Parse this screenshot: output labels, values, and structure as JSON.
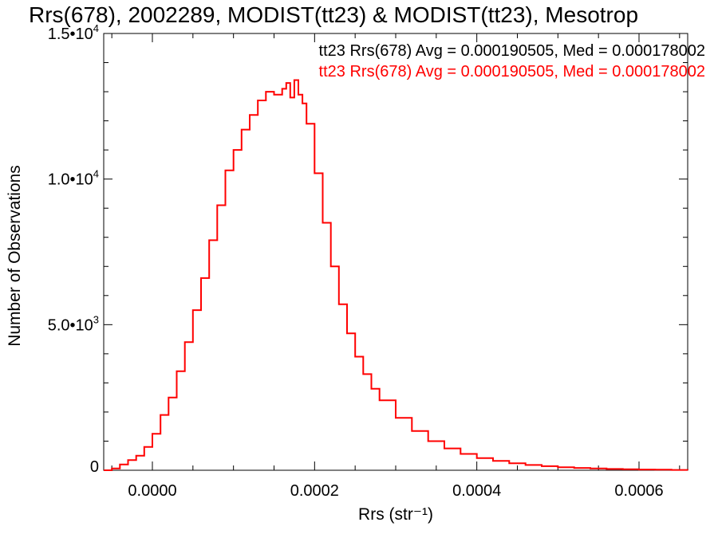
{
  "chart_data": {
    "type": "line",
    "step": true,
    "title": "Rrs(678), 2002289, MODIST(tt23) & MODIST(tt23), Mesotrop",
    "xlabel": "Rrs (str⁻¹)",
    "ylabel": "Number of Observations",
    "xlim": [
      -6e-05,
      0.00066
    ],
    "ylim": [
      0,
      15000
    ],
    "x_ticks": [
      {
        "value": 0.0,
        "label": "0.0000"
      },
      {
        "value": 0.0002,
        "label": "0.0002"
      },
      {
        "value": 0.0004,
        "label": "0.0004"
      },
      {
        "value": 0.0006,
        "label": "0.0006"
      }
    ],
    "y_ticks": [
      {
        "value": 0,
        "mant": "0",
        "exp": ""
      },
      {
        "value": 5000,
        "mant": "5.0•10",
        "exp": "3"
      },
      {
        "value": 10000,
        "mant": "1.0•10",
        "exp": "4"
      },
      {
        "value": 15000,
        "mant": "1.5•10",
        "exp": "4"
      }
    ],
    "annotations": [
      {
        "text": "tt23 Rrs(678) Avg = 0.000190505, Med = 0.000178002",
        "color": "#000000"
      },
      {
        "text": "tt23 Rrs(678) Avg = 0.000190505, Med = 0.000178002",
        "color": "#ff0000"
      }
    ],
    "series": [
      {
        "color": "#ff0000",
        "x": [
          -6e-05,
          -5e-05,
          -4e-05,
          -3e-05,
          -2e-05,
          -1e-05,
          0.0,
          1e-05,
          2e-05,
          3e-05,
          4e-05,
          5e-05,
          6e-05,
          7e-05,
          8e-05,
          9e-05,
          0.0001,
          0.00011,
          0.00012,
          0.00013,
          0.00014,
          0.00015,
          0.00016,
          0.000165,
          0.00017,
          0.000175,
          0.00018,
          0.000185,
          0.00019,
          0.0002,
          0.00021,
          0.00022,
          0.00023,
          0.00024,
          0.00025,
          0.00026,
          0.00027,
          0.00028,
          0.0003,
          0.00032,
          0.00034,
          0.00036,
          0.00038,
          0.0004,
          0.00042,
          0.00044,
          0.00046,
          0.00048,
          0.0005,
          0.00052,
          0.00054,
          0.00056,
          0.00058,
          0.0006,
          0.00062,
          0.00064,
          0.00066
        ],
        "y": [
          0,
          60,
          200,
          350,
          500,
          800,
          1250,
          1900,
          2500,
          3400,
          4400,
          5500,
          6600,
          7900,
          9100,
          10300,
          11000,
          11700,
          12200,
          12700,
          13000,
          12900,
          13100,
          13300,
          12800,
          13400,
          12900,
          12600,
          11900,
          10200,
          8500,
          7000,
          5700,
          4700,
          3900,
          3300,
          2800,
          2400,
          1800,
          1350,
          1000,
          750,
          560,
          420,
          320,
          240,
          180,
          140,
          105,
          80,
          60,
          45,
          35,
          25,
          18,
          12,
          8
        ]
      }
    ]
  }
}
